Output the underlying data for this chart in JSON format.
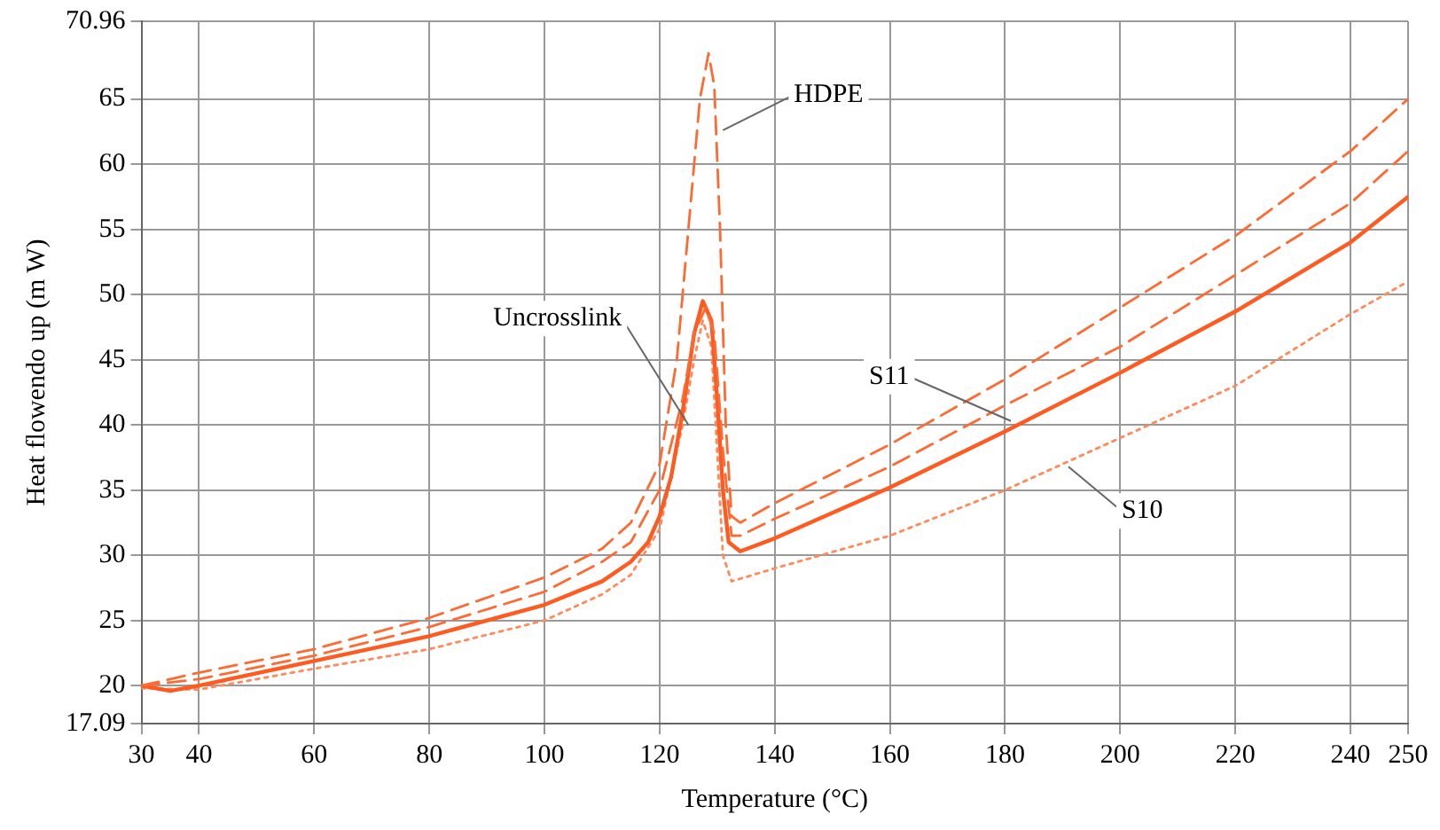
{
  "chart_data": {
    "type": "line",
    "xlabel": "Temperature (°C)",
    "ylabel": "Heat flowendo up (m W)",
    "xlim": [
      30,
      250
    ],
    "xticks": [
      30,
      40,
      60,
      80,
      100,
      120,
      140,
      160,
      180,
      200,
      220,
      240,
      250
    ],
    "ylim": [
      17.09,
      70.96
    ],
    "yticks": [
      17.09,
      20,
      25,
      30,
      35,
      40,
      45,
      50,
      55,
      60,
      65,
      70.96
    ],
    "grid": true,
    "legend": false,
    "marker": "none",
    "series": [
      {
        "color": "#ff6a33",
        "line_style": "dashed",
        "x": [
          30,
          40,
          60,
          80,
          100,
          110,
          115,
          120,
          123,
          125,
          127,
          128.5,
          129.5,
          130.5,
          131.5,
          132.5,
          134,
          140,
          160,
          180,
          200,
          220,
          240,
          250
        ],
        "values": [
          20,
          21,
          22.8,
          25.2,
          28.3,
          30.5,
          32.5,
          37,
          45,
          55,
          65,
          68.5,
          66,
          55,
          40,
          33,
          32.5,
          34,
          38.5,
          43.5,
          49,
          54.5,
          61,
          65
        ]
      },
      {
        "color": "#ff6a33",
        "line_style": "dashed",
        "x": [
          30,
          40,
          60,
          80,
          100,
          110,
          115,
          120,
          124,
          126,
          128,
          129.5,
          131,
          132.5,
          134,
          140,
          160,
          180,
          200,
          220,
          240,
          250
        ],
        "values": [
          20,
          20.5,
          22.3,
          24.5,
          27.2,
          29.5,
          31,
          35,
          42,
          47,
          49,
          47,
          38,
          31.5,
          31.5,
          32.8,
          36.8,
          41.5,
          46,
          51.5,
          57,
          61
        ]
      },
      {
        "color": "#ff5a1f",
        "line_style": "solid",
        "x": [
          30,
          35,
          40,
          60,
          80,
          100,
          110,
          115,
          118,
          120,
          122,
          124,
          126,
          127.5,
          129,
          130,
          131,
          132,
          134,
          140,
          160,
          180,
          200,
          220,
          240,
          250
        ],
        "values": [
          20,
          19.6,
          20,
          21.9,
          23.8,
          26.2,
          28,
          29.5,
          31,
          33,
          36,
          41,
          47,
          49.5,
          48,
          42,
          35,
          31,
          30.3,
          31.3,
          35.2,
          39.5,
          44,
          48.7,
          54,
          57.5
        ]
      },
      {
        "color": "#ff8a5c",
        "line_style": "dotted",
        "x": [
          30,
          40,
          60,
          80,
          100,
          110,
          115,
          120,
          124,
          126,
          127.5,
          129,
          130,
          131,
          132.5,
          140,
          160,
          180,
          200,
          220,
          240,
          250
        ],
        "values": [
          19.8,
          19.7,
          21.3,
          22.8,
          25,
          27,
          28.5,
          32,
          40,
          45,
          48,
          46,
          38,
          30,
          28,
          29,
          31.5,
          35,
          39,
          43,
          48.5,
          51
        ]
      }
    ],
    "annotations": [
      {
        "text": "HDPE",
        "x": 131,
        "y": 62.6
      },
      {
        "text": "Uncrosslink",
        "x": 125,
        "y": 40
      },
      {
        "text": "S11",
        "x": 181,
        "y": 40.3
      },
      {
        "text": "S10",
        "x": 191,
        "y": 36.8
      }
    ]
  }
}
